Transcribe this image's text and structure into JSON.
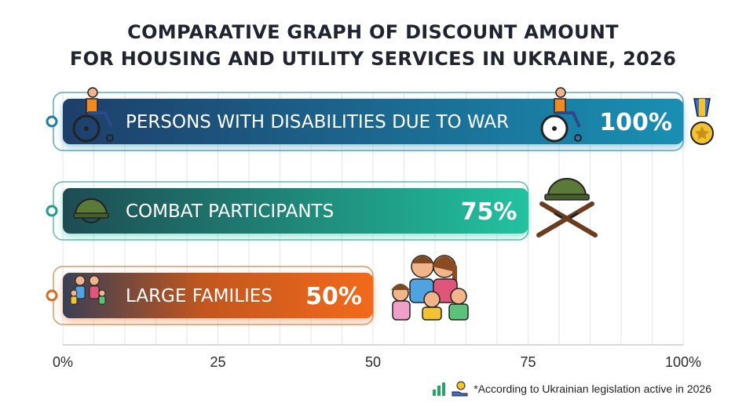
{
  "title_line1": "COMPARATIVE GRAPH OF DISCOUNT AMOUNT",
  "title_line2": "FOR HOUSING AND UTILITY SERVICES IN UKRAINE, 2026",
  "footnote": "*According to Ukrainian legislation active in 2026",
  "icons": {
    "bar1": "wheelchair-user-icon",
    "bar2": "helmet-icon",
    "bar3": "family-icon",
    "bar1_end": "wheelchair-user-icon",
    "bar1_award": "medal-icon",
    "bar2_end": "helmet-crossed-rifles-icon",
    "bar3_end": "family-icon",
    "footnote": [
      "bar-chart-icon",
      "money-hand-icon"
    ]
  },
  "colors": {
    "bar1": [
      "#1d3f6a",
      "#1a8fb3"
    ],
    "bar2": [
      "#1d4c52",
      "#22c2a0"
    ],
    "bar3": [
      "#3a3f55",
      "#f26a1b"
    ]
  },
  "chart_data": {
    "type": "bar",
    "orientation": "horizontal",
    "title": "COMPARATIVE GRAPH OF DISCOUNT AMOUNT FOR HOUSING AND UTILITY SERVICES IN UKRAINE, 2026",
    "categories": [
      "PERSONS WITH DISABILITIES DUE TO WAR",
      "COMBAT PARTICIPANTS",
      "LARGE FAMILIES"
    ],
    "values": [
      100,
      75,
      50
    ],
    "value_labels": [
      "100%",
      "75%",
      "50%"
    ],
    "x_ticks": [
      "0%",
      "25",
      "50",
      "75",
      "100%"
    ],
    "xlim": [
      0,
      100
    ],
    "grid": true
  }
}
